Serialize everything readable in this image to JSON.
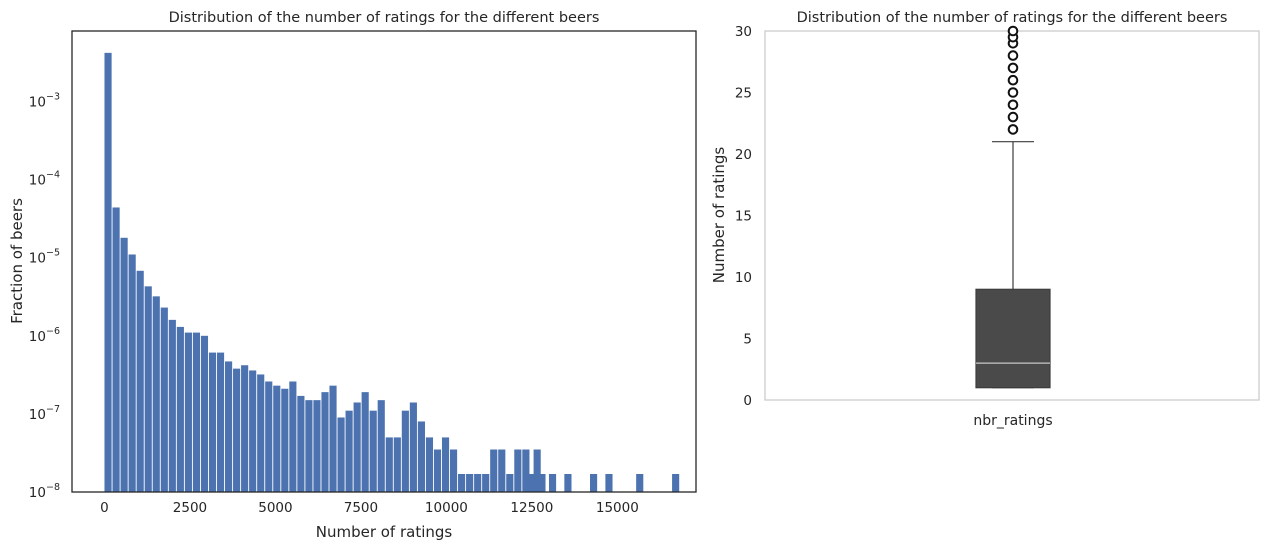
{
  "chart_data": [
    {
      "type": "bar",
      "title": "Distribution of the number of ratings for the different beers",
      "xlabel": "Number of ratings",
      "ylabel": "Fraction of beers",
      "yscale": "log",
      "xlim": [
        -950,
        17300
      ],
      "ylim": [
        1e-08,
        0.008
      ],
      "xticks": [
        0,
        2500,
        5000,
        7500,
        10000,
        12500,
        15000
      ],
      "xtick_labels": [
        "0",
        "2500",
        "5000",
        "7500",
        "10000",
        "12500",
        "15000"
      ],
      "yticks": [
        1e-08,
        1e-07,
        1e-06,
        1e-05,
        0.0001,
        0.001
      ],
      "ytick_labels": [
        {
          "base": "10",
          "exp": "−8"
        },
        {
          "base": "10",
          "exp": "−7"
        },
        {
          "base": "10",
          "exp": "−6"
        },
        {
          "base": "10",
          "exp": "−5"
        },
        {
          "base": "10",
          "exp": "−4"
        },
        {
          "base": "10",
          "exp": "−3"
        }
      ],
      "bin_start": 0,
      "bin_width": 235,
      "values": [
        0.0042,
        4.4e-05,
        1.8e-05,
        1.1e-05,
        6.8e-06,
        4.3e-06,
        3.2e-06,
        2.3e-06,
        1.6e-06,
        1.3e-06,
        1.1e-06,
        1.1e-06,
        1e-06,
        6.1e-07,
        6.1e-07,
        4.7e-07,
        3.8e-07,
        4.2e-07,
        3.6e-07,
        3.2e-07,
        2.6e-07,
        2.3e-07,
        2.1e-07,
        2.6e-07,
        1.7e-07,
        1.5e-07,
        1.5e-07,
        1.9e-07,
        2.3e-07,
        9e-08,
        1.1e-07,
        1.4e-07,
        1.9e-07,
        1.1e-07,
        1.5e-07,
        5e-08,
        5e-08,
        1.1e-07,
        1.4e-07,
        8e-08,
        5e-08,
        3.5e-08,
        5e-08,
        3.5e-08,
        1.7e-08,
        1.7e-08,
        1.7e-08,
        1.7e-08,
        3.5e-08,
        3.5e-08,
        1.7e-08,
        3.5e-08,
        3.5e-08,
        1.7e-08,
        1.7e-08,
        0,
        0,
        0,
        0,
        0,
        0,
        0,
        0,
        0,
        0
      ],
      "extra_bars": [
        {
          "x": 12350,
          "value": 1.7e-08
        },
        {
          "x": 12550,
          "value": 3.5e-08
        },
        {
          "x": 13000,
          "value": 1.7e-08
        },
        {
          "x": 13450,
          "value": 1.7e-08
        },
        {
          "x": 14200,
          "value": 1.7e-08
        },
        {
          "x": 14650,
          "value": 1.7e-08
        },
        {
          "x": 15550,
          "value": 1.7e-08
        },
        {
          "x": 16600,
          "value": 1.7e-08
        }
      ],
      "grid": false,
      "colors": {
        "bar": "#4c72b0",
        "axes": "#262626"
      }
    },
    {
      "type": "box",
      "title": "Distribution of the number of ratings for the different beers",
      "xlabel": "",
      "ylabel": "Number of ratings",
      "ylim": [
        0,
        30
      ],
      "yticks": [
        0,
        5,
        10,
        15,
        20,
        25,
        30
      ],
      "ytick_labels": [
        "0",
        "5",
        "10",
        "15",
        "20",
        "25",
        "30"
      ],
      "category": "nbr_ratings",
      "box": {
        "whisker_low": 1,
        "q1": 1,
        "median": 3,
        "q3": 9,
        "whisker_high": 21
      },
      "outliers": [
        22,
        23,
        24,
        25,
        26,
        27,
        28,
        29,
        29.5,
        30
      ],
      "grid": false,
      "colors": {
        "box": "#4a4a4a",
        "median": "#c8c8c8",
        "spine": "#cccccc"
      }
    }
  ]
}
